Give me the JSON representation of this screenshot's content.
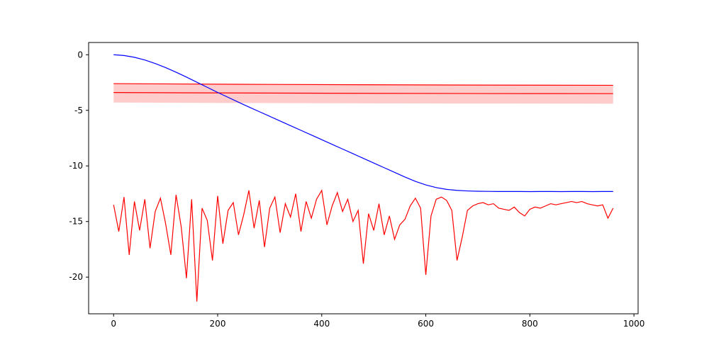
{
  "chart_data": {
    "type": "line",
    "xlim": [
      -48,
      1008
    ],
    "ylim": [
      -23.3,
      1.1
    ],
    "xticks": [
      0,
      200,
      400,
      600,
      800,
      1000
    ],
    "yticks": [
      -20,
      -15,
      -10,
      -5,
      0
    ],
    "band": {
      "color": "#ff0000",
      "x": [
        0,
        240,
        480,
        720,
        960
      ],
      "upper": [
        -2.6,
        -2.66,
        -2.7,
        -2.73,
        -2.75
      ],
      "lower": [
        -4.3,
        -4.34,
        -4.37,
        -4.39,
        -4.4
      ]
    },
    "series": [
      {
        "color": "#ff0000",
        "x": [
          0,
          240,
          480,
          720,
          960
        ],
        "values": [
          -3.4,
          -3.44,
          -3.47,
          -3.49,
          -3.5
        ]
      },
      {
        "color": "#0000ff",
        "x": [
          0,
          20,
          40,
          60,
          80,
          100,
          120,
          140,
          160,
          180,
          200,
          220,
          240,
          260,
          280,
          300,
          320,
          340,
          360,
          380,
          400,
          420,
          440,
          460,
          480,
          500,
          520,
          540,
          560,
          580,
          600,
          620,
          640,
          660,
          680,
          700,
          720,
          740,
          760,
          780,
          800,
          820,
          840,
          860,
          880,
          900,
          920,
          940,
          960
        ],
        "values": [
          0,
          -0.07,
          -0.23,
          -0.47,
          -0.79,
          -1.16,
          -1.57,
          -2.01,
          -2.47,
          -2.93,
          -3.39,
          -3.83,
          -4.27,
          -4.7,
          -5.12,
          -5.54,
          -5.96,
          -6.38,
          -6.8,
          -7.22,
          -7.64,
          -8.06,
          -8.48,
          -8.9,
          -9.32,
          -9.74,
          -10.16,
          -10.58,
          -11.0,
          -11.39,
          -11.71,
          -11.95,
          -12.11,
          -12.2,
          -12.25,
          -12.28,
          -12.29,
          -12.3,
          -12.3,
          -12.3,
          -12.31,
          -12.3,
          -12.3,
          -12.31,
          -12.3,
          -12.3,
          -12.31,
          -12.3,
          -12.3
        ]
      },
      {
        "color": "#ff0000",
        "x": [
          0,
          10,
          20,
          30,
          40,
          50,
          60,
          70,
          80,
          90,
          100,
          110,
          120,
          130,
          140,
          150,
          160,
          170,
          180,
          190,
          200,
          210,
          220,
          230,
          240,
          250,
          260,
          270,
          280,
          290,
          300,
          310,
          320,
          330,
          340,
          350,
          360,
          370,
          380,
          390,
          400,
          410,
          420,
          430,
          440,
          450,
          460,
          470,
          480,
          490,
          500,
          510,
          520,
          530,
          540,
          550,
          560,
          570,
          580,
          590,
          600,
          610,
          620,
          630,
          640,
          650,
          660,
          670,
          680,
          690,
          700,
          710,
          720,
          730,
          740,
          750,
          760,
          770,
          780,
          790,
          800,
          810,
          820,
          830,
          840,
          850,
          860,
          870,
          880,
          890,
          900,
          910,
          920,
          930,
          940,
          950,
          960
        ],
        "values": [
          -13.5,
          -15.9,
          -12.8,
          -18.0,
          -13.2,
          -15.8,
          -13.0,
          -17.4,
          -14.1,
          -12.9,
          -15.2,
          -18.0,
          -12.6,
          -15.5,
          -20.1,
          -13.0,
          -22.2,
          -13.8,
          -14.9,
          -18.5,
          -12.7,
          -17.0,
          -14.0,
          -13.3,
          -16.2,
          -14.4,
          -12.2,
          -15.6,
          -13.1,
          -17.3,
          -13.8,
          -12.8,
          -16.0,
          -13.4,
          -14.6,
          -12.5,
          -15.9,
          -13.2,
          -14.7,
          -13.0,
          -12.2,
          -15.3,
          -13.6,
          -12.4,
          -14.1,
          -13.0,
          -15.0,
          -14.0,
          -18.8,
          -14.3,
          -15.8,
          -13.4,
          -16.2,
          -14.5,
          -16.6,
          -15.3,
          -14.8,
          -13.6,
          -12.9,
          -13.8,
          -19.8,
          -14.5,
          -13.0,
          -12.8,
          -13.1,
          -14.0,
          -18.5,
          -16.4,
          -14.0,
          -13.6,
          -13.4,
          -13.3,
          -13.5,
          -13.4,
          -13.8,
          -13.9,
          -14.0,
          -13.7,
          -14.2,
          -14.5,
          -13.9,
          -13.7,
          -13.8,
          -13.6,
          -13.4,
          -13.5,
          -13.4,
          -13.3,
          -13.2,
          -13.3,
          -13.2,
          -13.4,
          -13.5,
          -13.6,
          -13.5,
          -14.7,
          -13.8
        ]
      }
    ]
  }
}
